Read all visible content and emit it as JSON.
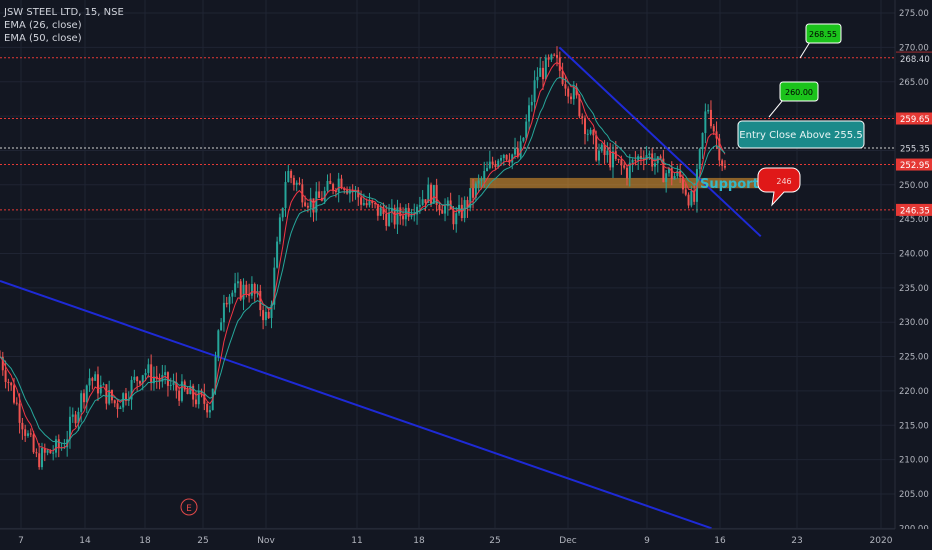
{
  "legend": {
    "title": "JSW STEEL LTD, 15, NSE",
    "ema26": "EMA (26, close)",
    "ema50": "EMA (50, close)"
  },
  "colors": {
    "background": "#131722",
    "grid": "#1f2433",
    "axis_text": "#b2b5be",
    "up_candle": "#26a69a",
    "down_candle": "#ef5350",
    "ema26": "#f23645",
    "ema50": "#26a69a",
    "trendline": "#1e2ad6",
    "support_zone": "#f0a030",
    "hline": "#e53935",
    "green_callout": "#1bc31b",
    "teal_callout": "#1b8a8a",
    "red_callout": "#e01818"
  },
  "chart_data": {
    "type": "candlestick",
    "symbol": "JSW STEEL LTD",
    "interval": "15",
    "exchange": "NSE",
    "x_tick_labels": [
      "7",
      "14",
      "18",
      "25",
      "Nov",
      "11",
      "18",
      "25",
      "Dec",
      "9",
      "16",
      "23",
      "2020"
    ],
    "y_ticks": [
      200,
      205,
      210,
      215,
      220,
      225,
      230,
      235,
      240,
      245,
      250,
      255,
      260,
      265,
      270,
      275
    ],
    "y_tick_labels": [
      "200.00",
      "205.00",
      "210.00",
      "215.00",
      "220.00",
      "225.00",
      "230.00",
      "235.00",
      "240.00",
      "245.00",
      "250.00",
      "255.00",
      "260.00",
      "265.00",
      "270.00",
      "275.00"
    ],
    "ylim": [
      199.9,
      276.9
    ],
    "price_anchors": [
      [
        0,
        225
      ],
      [
        0.04,
        210
      ],
      [
        0.07,
        212
      ],
      [
        0.1,
        222
      ],
      [
        0.13,
        218
      ],
      [
        0.16,
        223
      ],
      [
        0.2,
        220
      ],
      [
        0.235,
        218
      ],
      [
        0.25,
        234
      ],
      [
        0.28,
        235
      ],
      [
        0.3,
        230
      ],
      [
        0.32,
        252
      ],
      [
        0.35,
        247
      ],
      [
        0.38,
        251
      ],
      [
        0.41,
        247
      ],
      [
        0.44,
        245
      ],
      [
        0.48,
        249
      ],
      [
        0.51,
        245
      ],
      [
        0.53,
        249
      ],
      [
        0.56,
        255
      ],
      [
        0.58,
        254
      ],
      [
        0.6,
        266
      ],
      [
        0.62,
        268
      ],
      [
        0.645,
        262
      ],
      [
        0.665,
        255
      ],
      [
        0.68,
        254
      ],
      [
        0.7,
        252
      ],
      [
        0.72,
        255
      ],
      [
        0.74,
        252
      ],
      [
        0.76,
        251
      ],
      [
        0.775,
        247
      ],
      [
        0.79,
        262
      ],
      [
        0.8,
        257
      ],
      [
        0.81,
        252
      ]
    ],
    "horizontal_levels": [
      {
        "price": 268.5,
        "label": "268.50",
        "style": "red"
      },
      {
        "price": 268.4,
        "label": "268.40",
        "style": "plain"
      },
      {
        "price": 259.65,
        "label": "259.65",
        "style": "red"
      },
      {
        "price": 255.35,
        "label": "255.35",
        "style": "white"
      },
      {
        "price": 252.95,
        "label": "252.95",
        "style": "red"
      },
      {
        "price": 246.35,
        "label": "246.35",
        "style": "red"
      }
    ],
    "trendlines": [
      {
        "from": [
          0,
          236
        ],
        "to": [
          0.795,
          200
        ]
      },
      {
        "from": [
          0.625,
          270
        ],
        "to": [
          0.85,
          242.5
        ]
      }
    ],
    "support_zone": {
      "label": "Support Zone",
      "price_low": 249.5,
      "price_high": 251,
      "x_start": 0.525,
      "x_end": 0.875
    },
    "callouts": [
      {
        "kind": "green",
        "label": "268.55"
      },
      {
        "kind": "green",
        "label": "260.00"
      },
      {
        "kind": "teal",
        "label": "Entry Close Above 255.5"
      },
      {
        "kind": "red",
        "label": "246"
      }
    ],
    "event_marker": {
      "label": "E"
    }
  }
}
